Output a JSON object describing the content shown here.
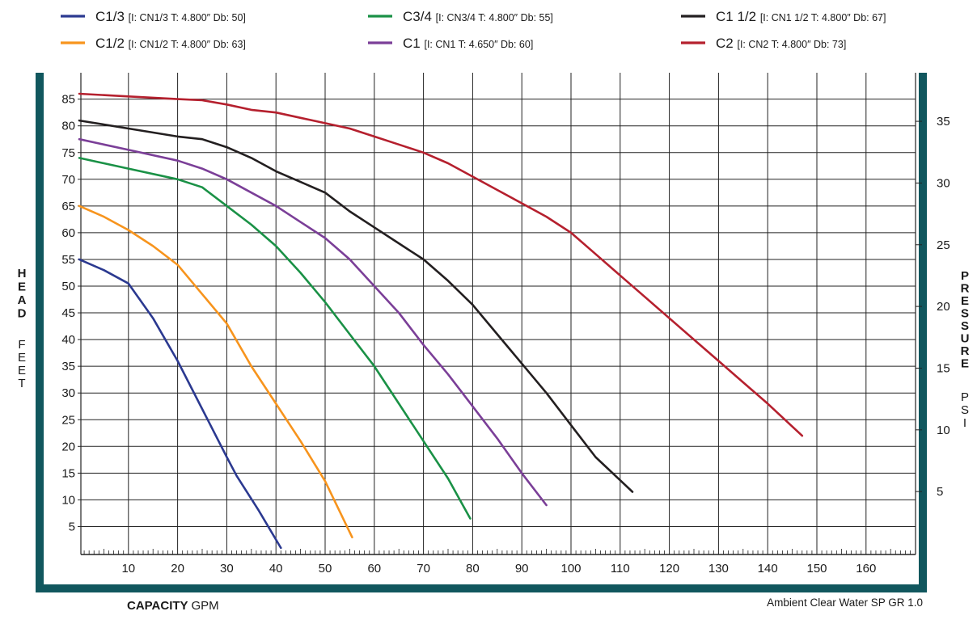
{
  "chart_data": {
    "type": "line",
    "legend": {
      "placement": "top",
      "entries": [
        {
          "key": "C1/3",
          "detail": "[I: CN1/3  T: 4.800″ Db: 50]",
          "color": "#2b3990"
        },
        {
          "key": "C1/2",
          "detail": "[I: CN1/2  T: 4.800″ Db: 63]",
          "color": "#f7941d"
        },
        {
          "key": "C3/4",
          "detail": "[I: CN3/4  T: 4.800″ Db: 55]",
          "color": "#1a9146"
        },
        {
          "key": "C1",
          "detail": "[I: CN1  T: 4.650″ Db: 60]",
          "color": "#7b3f98"
        },
        {
          "key": "C1 1/2",
          "detail": "[I: CN1 1/2  T: 4.800″ Db: 67]",
          "color": "#231f20"
        },
        {
          "key": "C2",
          "detail": "[I: CN2  T: 4.800″ Db: 73]",
          "color": "#b5202e"
        }
      ]
    },
    "xaxis": {
      "label_bold": "CAPACITY",
      "label_unit": "GPM",
      "range": [
        0,
        170
      ],
      "ticks": [
        10,
        20,
        30,
        40,
        50,
        60,
        70,
        80,
        90,
        100,
        110,
        120,
        130,
        140,
        150,
        160
      ]
    },
    "yaxis_left": {
      "label_bold": "HEAD",
      "label_unit": "FEET",
      "range": [
        0,
        89
      ],
      "ticks": [
        5,
        10,
        15,
        20,
        25,
        30,
        35,
        40,
        45,
        50,
        55,
        60,
        65,
        70,
        75,
        80,
        85
      ]
    },
    "yaxis_right": {
      "label_bold": "PRESSURE",
      "label_unit": "PSI",
      "ticks": [
        5,
        10,
        15,
        20,
        25,
        30,
        35
      ],
      "feet_per_psi": 2.31
    },
    "grid": true,
    "footnote": "Ambient Clear Water SP GR 1.0",
    "frame_color": "#11575e",
    "series": [
      {
        "name": "C1/3",
        "color": "#2b3990",
        "points": [
          [
            0,
            55
          ],
          [
            5,
            53
          ],
          [
            10,
            50.5
          ],
          [
            15,
            44
          ],
          [
            20,
            36
          ],
          [
            25,
            27
          ],
          [
            30,
            18
          ],
          [
            32,
            14.5
          ],
          [
            36.5,
            8
          ],
          [
            41,
            1
          ]
        ]
      },
      {
        "name": "C1/2",
        "color": "#f7941d",
        "points": [
          [
            0,
            65
          ],
          [
            5,
            63
          ],
          [
            10,
            60.5
          ],
          [
            15,
            57.5
          ],
          [
            20,
            54
          ],
          [
            25,
            48.5
          ],
          [
            30,
            43
          ],
          [
            35,
            35
          ],
          [
            40,
            28
          ],
          [
            45,
            21
          ],
          [
            50,
            13.5
          ],
          [
            55.5,
            3
          ]
        ]
      },
      {
        "name": "C3/4",
        "color": "#1a9146",
        "points": [
          [
            0,
            74
          ],
          [
            10,
            72
          ],
          [
            20,
            70
          ],
          [
            25,
            68.5
          ],
          [
            30,
            65
          ],
          [
            35,
            61.5
          ],
          [
            40,
            57.5
          ],
          [
            45,
            52.5
          ],
          [
            50,
            47
          ],
          [
            55,
            41
          ],
          [
            60,
            35
          ],
          [
            65,
            28
          ],
          [
            70,
            21
          ],
          [
            75,
            14
          ],
          [
            79.5,
            6.5
          ]
        ]
      },
      {
        "name": "C1",
        "color": "#7b3f98",
        "points": [
          [
            0,
            77.5
          ],
          [
            10,
            75.5
          ],
          [
            20,
            73.5
          ],
          [
            25,
            72
          ],
          [
            30,
            70
          ],
          [
            35,
            67.5
          ],
          [
            40,
            65
          ],
          [
            45,
            62
          ],
          [
            50,
            59
          ],
          [
            55,
            55
          ],
          [
            60,
            50
          ],
          [
            65,
            45
          ],
          [
            70,
            39
          ],
          [
            75,
            33.5
          ],
          [
            80,
            27.5
          ],
          [
            85,
            21.5
          ],
          [
            90,
            15
          ],
          [
            95,
            9
          ]
        ]
      },
      {
        "name": "C1 1/2",
        "color": "#231f20",
        "points": [
          [
            0,
            81
          ],
          [
            10,
            79.5
          ],
          [
            20,
            78
          ],
          [
            25,
            77.5
          ],
          [
            30,
            76
          ],
          [
            35,
            74
          ],
          [
            40,
            71.5
          ],
          [
            45,
            69.5
          ],
          [
            50,
            67.5
          ],
          [
            55,
            64
          ],
          [
            60,
            61
          ],
          [
            65,
            58
          ],
          [
            70,
            55
          ],
          [
            75,
            51
          ],
          [
            80,
            46.5
          ],
          [
            85,
            41
          ],
          [
            90,
            35.5
          ],
          [
            95,
            30
          ],
          [
            100,
            24
          ],
          [
            105,
            18
          ],
          [
            112.5,
            11.5
          ]
        ]
      },
      {
        "name": "C2",
        "color": "#b5202e",
        "points": [
          [
            0,
            86
          ],
          [
            10,
            85.5
          ],
          [
            20,
            85
          ],
          [
            25,
            84.8
          ],
          [
            30,
            84
          ],
          [
            35,
            83
          ],
          [
            40,
            82.5
          ],
          [
            45,
            81.5
          ],
          [
            50,
            80.5
          ],
          [
            55,
            79.5
          ],
          [
            60,
            78
          ],
          [
            65,
            76.5
          ],
          [
            70,
            75
          ],
          [
            75,
            73
          ],
          [
            80,
            70.5
          ],
          [
            85,
            68
          ],
          [
            90,
            65.5
          ],
          [
            95,
            63
          ],
          [
            100,
            60
          ],
          [
            105,
            56
          ],
          [
            110,
            52
          ],
          [
            115,
            48
          ],
          [
            120,
            44
          ],
          [
            125,
            40
          ],
          [
            130,
            36
          ],
          [
            135,
            32
          ],
          [
            140,
            28
          ],
          [
            147,
            22
          ]
        ]
      }
    ]
  }
}
